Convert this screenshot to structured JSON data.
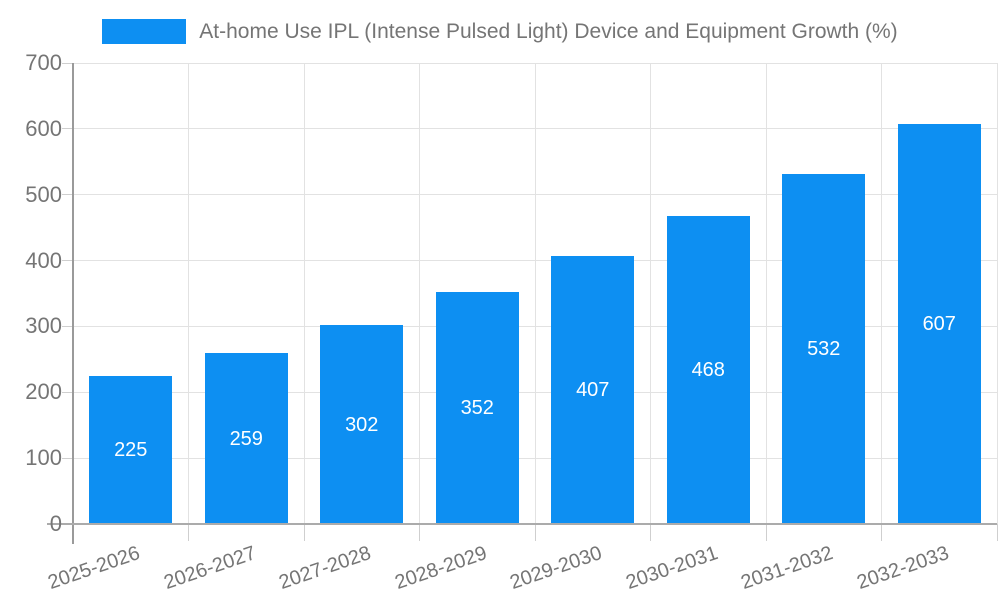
{
  "legend": {
    "label": "At-home Use IPL (Intense Pulsed Light) Device and Equipment Growth (%)",
    "position": "top"
  },
  "colors": {
    "bar": "#0d8ff2",
    "grid": "#e2e2e2",
    "tick": "#cfcfcf",
    "axis": "#9e9e9e",
    "text": "#757575",
    "value_label": "#ffffff",
    "background": "#ffffff"
  },
  "chart_data": {
    "type": "bar",
    "title": "At-home Use IPL (Intense Pulsed Light) Device and Equipment Growth (%)",
    "categories": [
      "2025-2026",
      "2026-2027",
      "2027-2028",
      "2028-2029",
      "2029-2030",
      "2030-2031",
      "2031-2032",
      "2032-2033"
    ],
    "values": [
      225,
      259,
      302,
      352,
      407,
      468,
      532,
      607
    ],
    "bar_value_labels": [
      "225",
      "259",
      "302",
      "352",
      "407",
      "468",
      "532",
      "607"
    ],
    "xlabel": "",
    "ylabel": "",
    "ylim": [
      0,
      700
    ],
    "yticks": [
      0,
      100,
      200,
      300,
      400,
      500,
      600,
      700
    ],
    "grid": true,
    "legend_position": "top",
    "bar_color": "#0d8ff2",
    "value_label_position": "inside-center"
  }
}
